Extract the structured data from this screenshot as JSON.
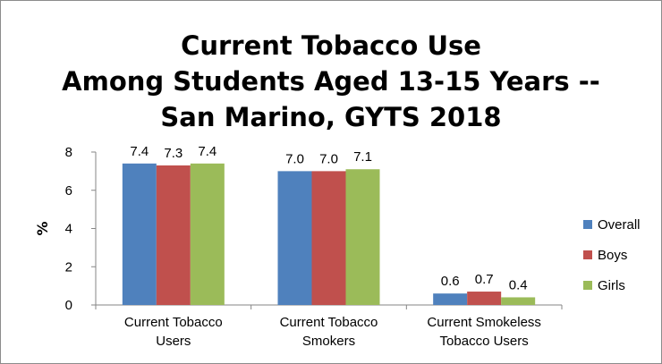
{
  "chart_data": {
    "type": "bar",
    "title_lines": [
      "Current Tobacco Use",
      "Among Students Aged 13-15 Years --",
      "San Marino, GYTS 2018"
    ],
    "xlabel": "",
    "ylabel": "%",
    "ylim": [
      0,
      8
    ],
    "yticks": [
      0,
      2,
      4,
      6,
      8
    ],
    "grid": false,
    "legend_position": "right",
    "categories": [
      [
        "Current Tobacco",
        "Users"
      ],
      [
        "Current Tobacco",
        "Smokers"
      ],
      [
        "Current Smokeless",
        "Tobacco Users"
      ]
    ],
    "series": [
      {
        "name": "Overall",
        "color": "#4f81bd",
        "values": [
          7.4,
          7.0,
          0.6
        ],
        "labels": [
          "7.4",
          "7.0",
          "0.6"
        ]
      },
      {
        "name": "Boys",
        "color": "#c0504d",
        "values": [
          7.3,
          7.0,
          0.7
        ],
        "labels": [
          "7.3",
          "7.0",
          "0.7"
        ]
      },
      {
        "name": "Girls",
        "color": "#9bbb59",
        "values": [
          7.4,
          7.1,
          0.4
        ],
        "labels": [
          "7.4",
          "7.1",
          "0.4"
        ]
      }
    ]
  }
}
